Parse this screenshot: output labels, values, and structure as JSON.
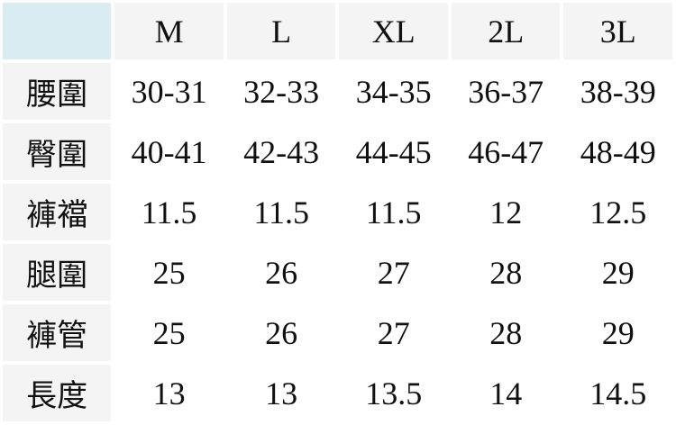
{
  "colors": {
    "corner": "#d9ecf2",
    "header": "#f4f4f4",
    "body": "#ffffff"
  },
  "sizes": [
    "M",
    "L",
    "XL",
    "2L",
    "3L"
  ],
  "rows": [
    {
      "label": "腰圍",
      "values": [
        "30-31",
        "32-33",
        "34-35",
        "36-37",
        "38-39"
      ]
    },
    {
      "label": "臀圍",
      "values": [
        "40-41",
        "42-43",
        "44-45",
        "46-47",
        "48-49"
      ]
    },
    {
      "label": "褲襠",
      "values": [
        "11.5",
        "11.5",
        "11.5",
        "12",
        "12.5"
      ]
    },
    {
      "label": "腿圍",
      "values": [
        "25",
        "26",
        "27",
        "28",
        "29"
      ]
    },
    {
      "label": "褲管",
      "values": [
        "25",
        "26",
        "27",
        "28",
        "29"
      ]
    },
    {
      "label": "長度",
      "values": [
        "13",
        "13",
        "13.5",
        "14",
        "14.5"
      ]
    }
  ]
}
